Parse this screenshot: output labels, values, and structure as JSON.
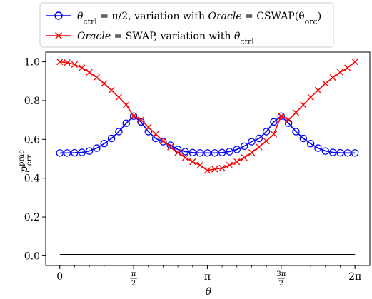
{
  "chart_data": {
    "type": "line",
    "xlabel": "θ",
    "ylabel": "p",
    "ylabel_sup": "prac",
    "ylabel_sub": "err",
    "xlim": [
      -0.3,
      6.6
    ],
    "ylim": [
      -0.05,
      1.05
    ],
    "x_ticks": [
      {
        "value": 0,
        "label": "0"
      },
      {
        "value": 1.5708,
        "num": "π",
        "den": "2"
      },
      {
        "value": 3.1416,
        "label": "π"
      },
      {
        "value": 4.7124,
        "num": "3π",
        "den": "2"
      },
      {
        "value": 6.2832,
        "label": "2π"
      }
    ],
    "y_ticks": [
      {
        "value": 0.0,
        "label": "0.0"
      },
      {
        "value": 0.2,
        "label": "0.2"
      },
      {
        "value": 0.4,
        "label": "0.4"
      },
      {
        "value": 0.6,
        "label": "0.6"
      },
      {
        "value": 0.8,
        "label": "0.8"
      },
      {
        "value": 1.0,
        "label": "1.0"
      }
    ],
    "legend_position": "above plot, centered",
    "series": [
      {
        "name": "θctrl = π/2, variation with Oracle = CSWAP(θorc)",
        "color": "#0000ff",
        "marker": "circle",
        "x": [
          0,
          0.1571,
          0.3142,
          0.4712,
          0.6283,
          0.7854,
          0.9425,
          1.0996,
          1.2566,
          1.4137,
          1.5708,
          1.7279,
          1.885,
          2.042,
          2.1991,
          2.3562,
          2.5133,
          2.6704,
          2.8274,
          2.9845,
          3.1416,
          3.2987,
          3.4558,
          3.6128,
          3.7699,
          3.927,
          4.0841,
          4.2412,
          4.3982,
          4.5553,
          4.7124,
          4.8695,
          5.0265,
          5.1836,
          5.3407,
          5.4978,
          5.6549,
          5.8119,
          5.969,
          6.1261,
          6.2832
        ],
        "y": [
          0.53,
          0.53,
          0.531,
          0.533,
          0.54,
          0.555,
          0.578,
          0.605,
          0.64,
          0.683,
          0.72,
          0.69,
          0.64,
          0.605,
          0.588,
          0.57,
          0.548,
          0.537,
          0.532,
          0.53,
          0.53,
          0.53,
          0.532,
          0.537,
          0.548,
          0.565,
          0.588,
          0.605,
          0.64,
          0.69,
          0.72,
          0.683,
          0.64,
          0.605,
          0.578,
          0.555,
          0.54,
          0.533,
          0.531,
          0.53,
          0.53
        ]
      },
      {
        "name": "Oracle = SWAP, variation with θctrl",
        "color": "#ff0000",
        "marker": "x",
        "x": [
          0,
          0.1571,
          0.3142,
          0.4712,
          0.6283,
          0.7854,
          0.9425,
          1.0996,
          1.2566,
          1.4137,
          1.5708,
          1.7279,
          1.885,
          2.042,
          2.1991,
          2.3562,
          2.5133,
          2.6704,
          2.8274,
          2.9845,
          3.1416,
          3.2987,
          3.4558,
          3.6128,
          3.7699,
          3.927,
          4.0841,
          4.2412,
          4.3982,
          4.5553,
          4.7124,
          4.8695,
          5.0265,
          5.1836,
          5.3407,
          5.4978,
          5.6549,
          5.8119,
          5.969,
          6.1261,
          6.2832
        ],
        "y": [
          1.0,
          0.996,
          0.986,
          0.969,
          0.946,
          0.919,
          0.888,
          0.853,
          0.817,
          0.778,
          0.72,
          0.701,
          0.663,
          0.627,
          0.592,
          0.561,
          0.532,
          0.506,
          0.485,
          0.467,
          0.44,
          0.447,
          0.452,
          0.467,
          0.485,
          0.506,
          0.532,
          0.561,
          0.592,
          0.627,
          0.72,
          0.701,
          0.738,
          0.778,
          0.817,
          0.853,
          0.888,
          0.919,
          0.946,
          0.969,
          1.0
        ]
      },
      {
        "name": "",
        "color": "#000000",
        "marker": "none",
        "x": [
          0,
          6.2832
        ],
        "y": [
          0.005,
          0.005
        ]
      }
    ]
  },
  "legend": {
    "line1": {
      "theta": "θ",
      "sub": "ctrl",
      "rest": " = π/2, variation with ",
      "oracle": "Oracle",
      "eq": " = CSWAP(θ",
      "sub2": "orc",
      "close": ")"
    },
    "line2": {
      "oracle": "Oracle",
      "rest": " = SWAP, variation with ",
      "theta": "θ",
      "sub": "ctrl"
    }
  }
}
